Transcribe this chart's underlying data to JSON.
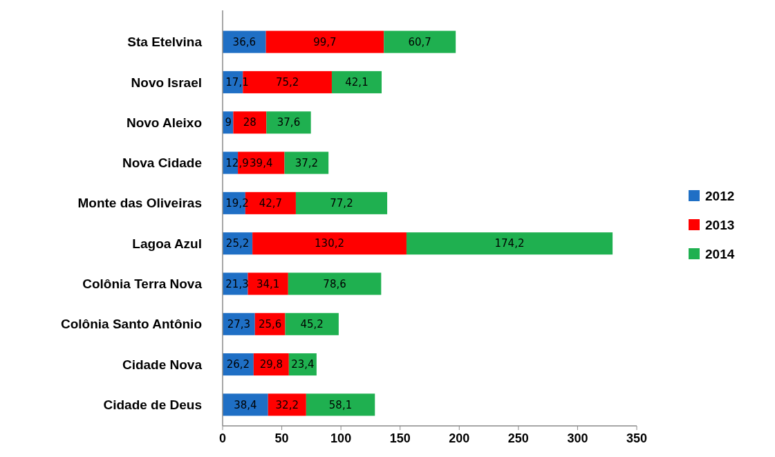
{
  "chart_data": {
    "type": "bar",
    "orientation": "horizontal",
    "stacked": true,
    "categories": [
      "Sta Etelvina",
      "Novo Israel",
      "Novo Aleixo",
      "Nova Cidade",
      "Monte das Oliveiras",
      "Lagoa Azul",
      "Colônia Terra Nova",
      "Colônia Santo Antônio",
      "Cidade Nova",
      "Cidade de Deus"
    ],
    "series": [
      {
        "name": "2012",
        "color": "#1f6fc5",
        "values": [
          36.6,
          17.1,
          9,
          12.9,
          19.2,
          25.2,
          21.3,
          27.3,
          26.2,
          38.4
        ],
        "value_labels": [
          "36,6",
          "17,1",
          "9",
          "12,9",
          "19,2",
          "25,2",
          "21,3",
          "27,3",
          "26,2",
          "38,4"
        ]
      },
      {
        "name": "2013",
        "color": "#ff0000",
        "values": [
          99.7,
          75.2,
          28,
          39.4,
          42.7,
          130.2,
          34.1,
          25.6,
          29.8,
          32.2
        ],
        "value_labels": [
          "99,7",
          "75,2",
          "28",
          "39,4",
          "42,7",
          "130,2",
          "34,1",
          "25,6",
          "29,8",
          "32,2"
        ]
      },
      {
        "name": "2014",
        "color": "#1fb050",
        "values": [
          60.7,
          42.1,
          37.6,
          37.2,
          77.2,
          174.2,
          78.6,
          45.2,
          23.4,
          58.1
        ],
        "value_labels": [
          "60,7",
          "42,1",
          "37,6",
          "37,2",
          "77,2",
          "174,2",
          "78,6",
          "45,2",
          "23,4",
          "58,1"
        ]
      }
    ],
    "xlim": [
      0,
      350
    ],
    "xticks": [
      0,
      50,
      100,
      150,
      200,
      250,
      300,
      350
    ],
    "grid": false,
    "legend": "right"
  }
}
